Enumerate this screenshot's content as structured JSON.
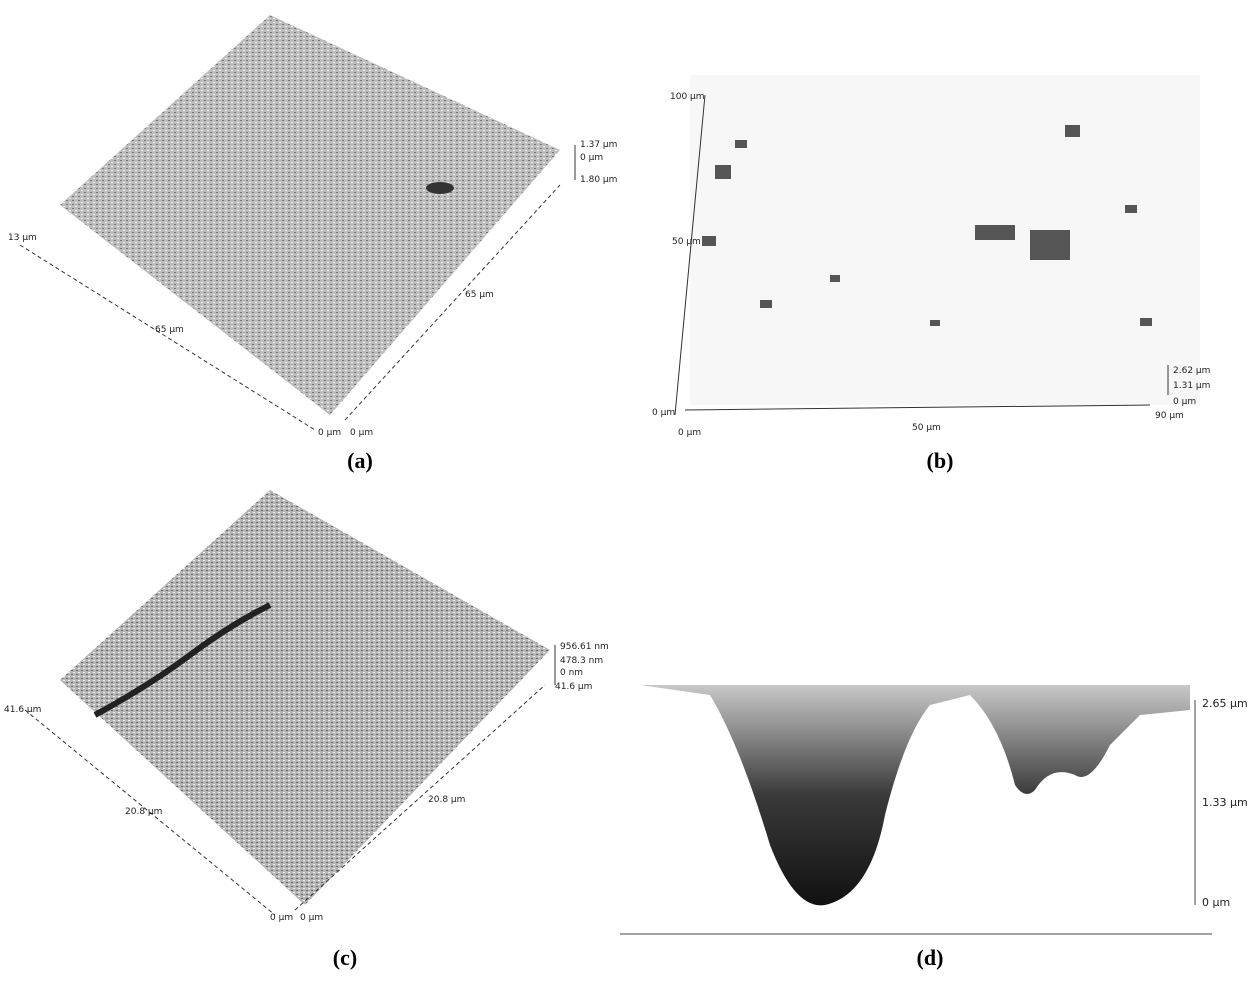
{
  "panels": {
    "a": {
      "caption": "(a)",
      "scale_max": "1.37 µm",
      "scale_mid": "0 µm",
      "scale_min": "1.80 µm",
      "y_left": "13 µm",
      "x_bottom": "65 µm",
      "x_right": "65 µm",
      "origin_left": "0 µm",
      "origin_right": "0 µm"
    },
    "b": {
      "caption": "(b)",
      "y_top": "100 µm",
      "y_mid": "50 µm",
      "y_zero": "0 µm",
      "x_zero": "0 µm",
      "x_mid": "50 µm",
      "x_end": "90 µm",
      "z_top": "2.62 µm",
      "z_mid": "1.31 µm",
      "z_zero": "0 µm"
    },
    "c": {
      "caption": "(c)",
      "z_max": "956.61 nm",
      "z_mid": "478.3 nm",
      "z_zero": "0 nm",
      "y_left": "41.6 µm",
      "y_right": "41.6 µm",
      "x_bottom": "20.8 µm",
      "x_right": "20.8 µm",
      "origin_left": "0 µm",
      "origin_right": "0 µm"
    },
    "d": {
      "caption": "(d)",
      "z_top": "2.65 µm",
      "z_mid": "1.33 µm",
      "z_zero": "0 µm"
    }
  }
}
